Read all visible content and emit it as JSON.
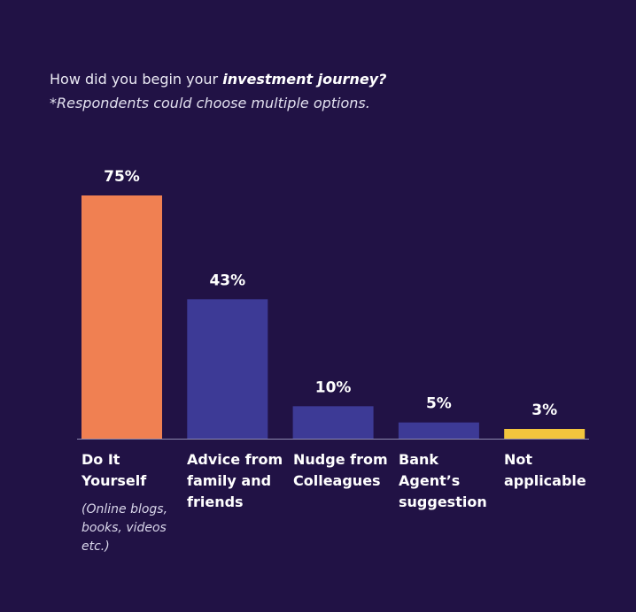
{
  "header": {
    "title_prefix": "How did you begin your ",
    "title_emphasis": "investment journey?",
    "subtitle": "*Respondents could choose multiple options."
  },
  "chart_data": {
    "type": "bar",
    "categories": [
      "Do It Yourself",
      "Advice from family and friends",
      "Nudge from Colleagues",
      "Bank Agent’s suggestion",
      "Not applicable"
    ],
    "category_note": "(Online blogs, books, videos etc.)",
    "values": [
      75,
      43,
      10,
      5,
      3
    ],
    "data_labels": [
      "75%",
      "43%",
      "10%",
      "5%",
      "3%"
    ],
    "unit": "%",
    "ylim": [
      0,
      75
    ],
    "grid": false,
    "legend": "none",
    "colors": [
      "#f08052",
      "#3d3a96",
      "#3d3a96",
      "#3d3a96",
      "#f2c53d"
    ]
  },
  "colors": {
    "background": "#211245",
    "baseline": "#8f8bb0"
  }
}
